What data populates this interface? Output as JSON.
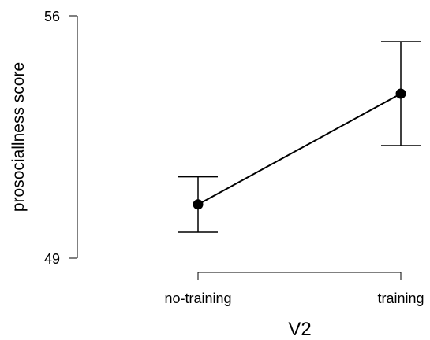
{
  "chart_data": {
    "type": "line",
    "title": "",
    "xlabel": "V2",
    "ylabel": "prosociallness score",
    "categories": [
      "no-training",
      "training"
    ],
    "series": [
      {
        "values": [
          50.55,
          53.75
        ],
        "error_low": [
          49.75,
          52.25
        ],
        "error_high": [
          51.35,
          55.25
        ]
      }
    ],
    "ylim": [
      49,
      56
    ],
    "yticks": [
      "49",
      "56"
    ],
    "grid": false,
    "legend": "none",
    "colors": {
      "line": "#000000",
      "marker": "#000000",
      "axis": "#000000",
      "background": "#ffffff"
    }
  }
}
